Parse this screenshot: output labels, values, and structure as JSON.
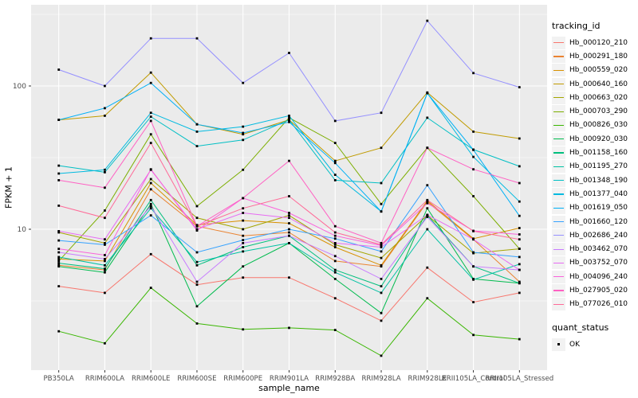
{
  "figure": {
    "background": "#FFFFFF",
    "panel_background": "#EBEBEB",
    "gridline_color": "#FFFFFF",
    "axis_text_color": "#4D4D4D",
    "tick_mark_color": "#333333",
    "point_color": "#000000",
    "legend_key_background": "#F2F2F2"
  },
  "chart_data": {
    "type": "line",
    "title": "",
    "xlabel": "sample_name",
    "ylabel": "FPKM + 1",
    "y_scale": "log10",
    "y_ticks": [
      10,
      100
    ],
    "y_minor_ticks": [
      3.162,
      31.62,
      316.2
    ],
    "ylim": [
      1.04,
      367
    ],
    "grid": "on",
    "legend_position": "right",
    "legend_title": "tracking_id",
    "point_marker": "black-square",
    "categories": [
      "PB350LA",
      "RRIM600LA",
      "RRIM600LE",
      "RRIM600SE",
      "RRIM600PE",
      "RRIM901LA",
      "RRIM928BA",
      "RRIM928LA",
      "RRIM928LE",
      "RRII105LA_Control",
      "RRII105LA_Stressed"
    ],
    "series": [
      {
        "name": "Hb_000120_210",
        "color": "#F8766D",
        "values": [
          4.0,
          3.6,
          6.7,
          4.1,
          4.6,
          4.6,
          3.3,
          2.3,
          5.4,
          3.1,
          3.6
        ]
      },
      {
        "name": "Hb_000291_180",
        "color": "#EA8331",
        "values": [
          5.6,
          5.2,
          19,
          10.5,
          9.0,
          9.5,
          6.0,
          5.5,
          15.5,
          8.5,
          4.3
        ]
      },
      {
        "name": "Hb_000559_020",
        "color": "#D89000",
        "values": [
          6.2,
          6.0,
          21,
          10.7,
          11.5,
          11,
          7.5,
          5.6,
          15.8,
          8.6,
          10.2
        ]
      },
      {
        "name": "Hb_000640_160",
        "color": "#C09B00",
        "values": [
          58,
          62,
          124,
          54,
          46,
          58,
          30,
          37,
          90,
          48,
          43
        ]
      },
      {
        "name": "Hb_000663_020",
        "color": "#A3A500",
        "values": [
          9.5,
          8.0,
          22.4,
          12,
          10,
          12.5,
          7.8,
          6.3,
          12.5,
          6.8,
          7.3
        ]
      },
      {
        "name": "Hb_000703_290",
        "color": "#7CAE00",
        "values": [
          6.0,
          13.5,
          46,
          14.5,
          26,
          60,
          40,
          15,
          37,
          17,
          7.3
        ]
      },
      {
        "name": "Hb_000826_030",
        "color": "#39B600",
        "values": [
          1.94,
          1.6,
          3.9,
          2.2,
          2.0,
          2.05,
          1.98,
          1.31,
          3.3,
          1.83,
          1.71
        ]
      },
      {
        "name": "Hb_000920_030",
        "color": "#00BB4E",
        "values": [
          5.5,
          5.0,
          15,
          2.9,
          5.5,
          8.0,
          4.5,
          2.6,
          14,
          4.5,
          4.2
        ]
      },
      {
        "name": "Hb_001158_160",
        "color": "#00BF7D",
        "values": [
          5.8,
          5.3,
          16,
          5.6,
          7.5,
          9.0,
          5.2,
          4.0,
          12.5,
          5.5,
          4.2
        ]
      },
      {
        "name": "Hb_001195_270",
        "color": "#00C1A3",
        "values": [
          6.4,
          5.6,
          14,
          5.9,
          7.0,
          8.0,
          5.0,
          3.6,
          10,
          4.45,
          5.7
        ]
      },
      {
        "name": "Hb_001348_190",
        "color": "#00BFC4",
        "values": [
          27.8,
          25,
          61,
          38,
          42,
          58,
          22,
          21,
          60,
          36,
          27.5
        ]
      },
      {
        "name": "Hb_001377_040",
        "color": "#00BAE0",
        "values": [
          24.5,
          26,
          65,
          48,
          52,
          62,
          24,
          13.3,
          89,
          32,
          15.6
        ]
      },
      {
        "name": "Hb_001619_050",
        "color": "#00B0F6",
        "values": [
          58,
          70,
          105,
          54,
          47,
          56,
          29,
          13.3,
          89,
          35.8,
          12.4
        ]
      },
      {
        "name": "Hb_001660_120",
        "color": "#35A2FF",
        "values": [
          8.35,
          7.8,
          12.5,
          6.9,
          8.4,
          10,
          8.6,
          7.0,
          20.3,
          6.9,
          6.4
        ]
      },
      {
        "name": "Hb_002686_240",
        "color": "#9590FF",
        "values": [
          130,
          100,
          215,
          215,
          105,
          170,
          57,
          65,
          285,
          123,
          98
        ]
      },
      {
        "name": "Hb_003462_070",
        "color": "#C77CFF",
        "values": [
          6.9,
          6.2,
          14.5,
          4.3,
          8.0,
          9.0,
          6.5,
          4.5,
          12.2,
          5.5,
          5.2
        ]
      },
      {
        "name": "Hb_003752_070",
        "color": "#E76BF3",
        "values": [
          9.7,
          8.5,
          26,
          10,
          13,
          12,
          8.0,
          7.5,
          12.6,
          8.5,
          5.2
        ]
      },
      {
        "name": "Hb_004096_240",
        "color": "#FA62DB",
        "values": [
          7.3,
          6.6,
          26.2,
          9.8,
          16.5,
          13,
          9.0,
          7.7,
          15.2,
          9.75,
          9.2
        ]
      },
      {
        "name": "Hb_027905_020",
        "color": "#FF61C3",
        "values": [
          22,
          19.5,
          57,
          10.5,
          16.5,
          30,
          10.5,
          8.0,
          37,
          26.2,
          21
        ]
      },
      {
        "name": "Hb_077026_010",
        "color": "#FF6A98",
        "values": [
          14.6,
          12,
          40,
          10.5,
          14,
          17,
          9.5,
          7.8,
          16,
          9.7,
          8.5
        ]
      }
    ],
    "legend2": {
      "title": "quant_status",
      "items": [
        "OK"
      ]
    }
  }
}
